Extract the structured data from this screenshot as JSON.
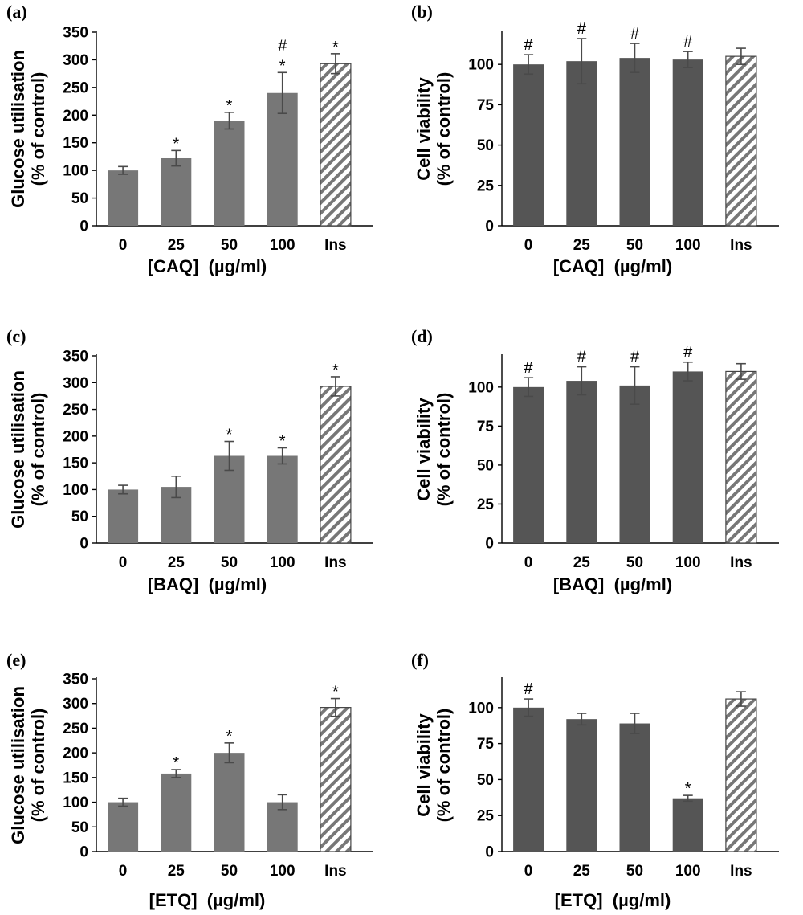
{
  "colors": {
    "glucose_bar": "#777777",
    "viability_bar": "#555555",
    "error_bar": "#4a4a4a",
    "hatch_stripe": "#777777"
  },
  "chart_data": [
    {
      "id": "a",
      "label": "(a)",
      "type": "bar",
      "categories": [
        "0",
        "25",
        "50",
        "100",
        "Ins"
      ],
      "values": [
        100,
        122,
        190,
        240,
        293
      ],
      "errors": [
        7,
        14,
        15,
        37,
        18
      ],
      "markers": [
        "",
        "*",
        "*",
        "*#",
        "*"
      ],
      "hatched": [
        false,
        false,
        false,
        false,
        true
      ],
      "xlabel": "[CAQ]  (µg/ml)",
      "ylabel": [
        "Glucose utilisation",
        "(% of control)"
      ],
      "ylim": [
        0,
        350
      ],
      "yticks": [
        0,
        50,
        100,
        150,
        200,
        250,
        300,
        350
      ],
      "legend": "none",
      "grid": false
    },
    {
      "id": "b",
      "label": "(b)",
      "type": "bar",
      "categories": [
        "0",
        "25",
        "50",
        "100",
        "Ins"
      ],
      "values": [
        100,
        102,
        104,
        103,
        105
      ],
      "errors": [
        6,
        14,
        9,
        5,
        5
      ],
      "markers": [
        "#",
        "#",
        "#",
        "#",
        ""
      ],
      "hatched": [
        false,
        false,
        false,
        false,
        true
      ],
      "xlabel": "[CAQ]  (µg/ml)",
      "ylabel": [
        "Cell viability",
        "(% of control)"
      ],
      "ylim": [
        0,
        120
      ],
      "yticks": [
        0,
        25,
        50,
        75,
        100
      ],
      "legend": "none",
      "grid": false
    },
    {
      "id": "c",
      "label": "(c)",
      "type": "bar",
      "categories": [
        "0",
        "25",
        "50",
        "100",
        "Ins"
      ],
      "values": [
        100,
        105,
        163,
        163,
        293
      ],
      "errors": [
        8,
        20,
        27,
        15,
        18
      ],
      "markers": [
        "",
        "",
        "*",
        "*",
        "*"
      ],
      "hatched": [
        false,
        false,
        false,
        false,
        true
      ],
      "xlabel": "[BAQ]  (µg/ml)",
      "ylabel": [
        "Glucose utilisation",
        "(% of control)"
      ],
      "ylim": [
        0,
        350
      ],
      "yticks": [
        0,
        50,
        100,
        150,
        200,
        250,
        300,
        350
      ],
      "legend": "none",
      "grid": false
    },
    {
      "id": "d",
      "label": "(d)",
      "type": "bar",
      "categories": [
        "0",
        "25",
        "50",
        "100",
        "Ins"
      ],
      "values": [
        100,
        104,
        101,
        110,
        110
      ],
      "errors": [
        6,
        9,
        12,
        6,
        5
      ],
      "markers": [
        "#",
        "#",
        "#",
        "#",
        ""
      ],
      "hatched": [
        false,
        false,
        false,
        false,
        true
      ],
      "xlabel": "[BAQ]  (µg/ml)",
      "ylabel": [
        "Cell viability",
        "(% of control)"
      ],
      "ylim": [
        0,
        120
      ],
      "yticks": [
        0,
        25,
        50,
        75,
        100
      ],
      "legend": "none",
      "grid": false
    },
    {
      "id": "e",
      "label": "(e)",
      "type": "bar",
      "categories": [
        "0",
        "25",
        "50",
        "100",
        "Ins"
      ],
      "values": [
        100,
        158,
        200,
        100,
        292
      ],
      "errors": [
        8,
        8,
        20,
        15,
        18
      ],
      "markers": [
        "",
        "*",
        "*",
        "",
        "*"
      ],
      "hatched": [
        false,
        false,
        false,
        false,
        true
      ],
      "xlabel": "[ETQ]  (µg/ml)",
      "ylabel": [
        "Glucose utilisation",
        "(% of control)"
      ],
      "ylim": [
        0,
        350
      ],
      "yticks": [
        0,
        50,
        100,
        150,
        200,
        250,
        300,
        350
      ],
      "legend": "none",
      "grid": false
    },
    {
      "id": "f",
      "label": "(f)",
      "type": "bar",
      "categories": [
        "0",
        "25",
        "50",
        "100",
        "Ins"
      ],
      "values": [
        100,
        92,
        89,
        37,
        106
      ],
      "errors": [
        6,
        4,
        7,
        2,
        5
      ],
      "markers": [
        "#",
        "",
        "",
        "*",
        ""
      ],
      "hatched": [
        false,
        false,
        false,
        false,
        true
      ],
      "xlabel": "[ETQ]  (µg/ml)",
      "ylabel": [
        "Cell viability",
        "(% of control)"
      ],
      "ylim": [
        0,
        120
      ],
      "yticks": [
        0,
        25,
        50,
        75,
        100
      ],
      "legend": "none",
      "grid": false
    }
  ]
}
